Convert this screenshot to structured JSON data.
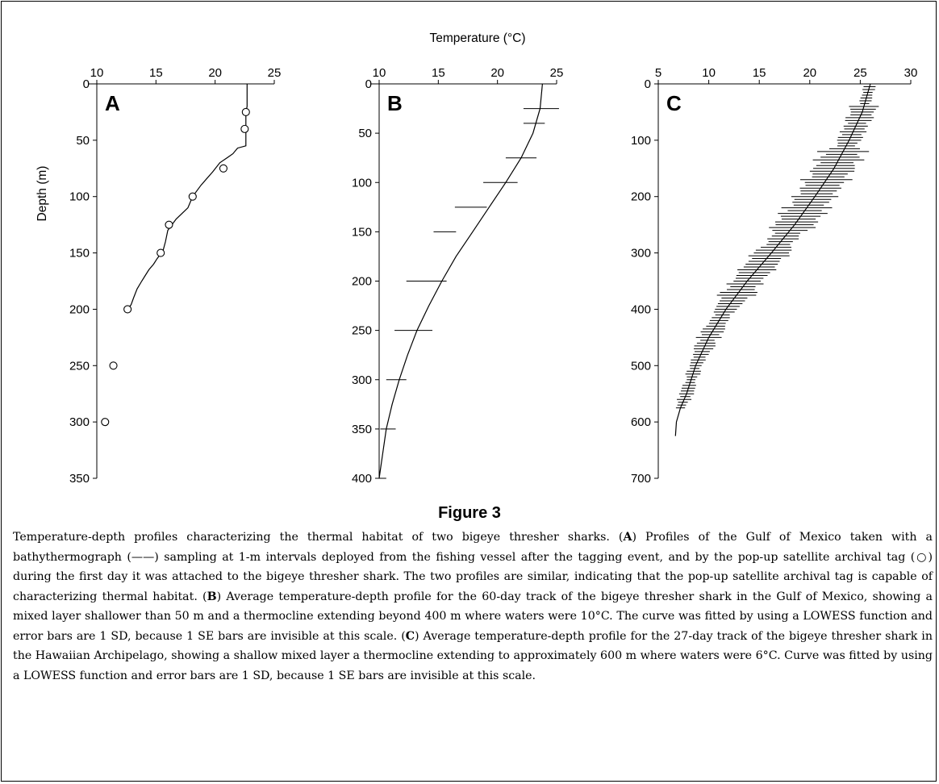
{
  "figure": {
    "xlabel": "Temperature (°C)",
    "ylabel": "Depth (m)",
    "title": "Figure 3",
    "caption": "Temperature-depth profiles characterizing the thermal habitat of two bigeye thresher sharks. (**A**) Profiles of the Gulf of Mexico taken with a bathythermograph (——) sampling at 1-m intervals deployed from the fishing vessel after the tagging event, and by the pop-up satellite archival tag (○) during the first day it was attached to the bigeye thresher shark. The two profiles are similar, indicating that the pop-up satellite archival tag is capable of characterizing thermal habitat. (**B**) Average temperature-depth profile for the 60-day track of the bigeye thresher shark in the Gulf of Mexico, showing a mixed layer shallower than 50 m and a thermocline extending beyond 400 m where waters were 10°C. The curve was fitted by using a LOWESS function and error bars are 1 SD, because 1 SE bars are invisible at this scale. (**C**) Average temperature-depth profile for the 27-day track of the bigeye thresher shark in the Hawaiian Archipelago, showing a shallow mixed layer a thermocline extending to approximately 600 m where waters were 6°C. Curve was fitted by using a LOWESS function and error bars are 1 SD, because 1 SE bars are invisible at this scale."
  },
  "chart_data": [
    {
      "type": "line",
      "panel": "A",
      "xlim": [
        10,
        25
      ],
      "xticks": [
        10,
        15,
        20,
        25
      ],
      "ylim": [
        0,
        350
      ],
      "yticks": [
        0,
        50,
        100,
        150,
        200,
        250,
        300,
        350
      ],
      "x_axis_position": "top",
      "y_reversed": true,
      "grid": false,
      "series": [
        {
          "kind": "line",
          "x": [
            22.7,
            22.7,
            22.6,
            22.6,
            22.6,
            22.6,
            21.9,
            21.5,
            21.1,
            20.4,
            19.8,
            18.8,
            18.1,
            17.7,
            16.7,
            16.0,
            15.8,
            15.6,
            15.1,
            14.8,
            14.4,
            14.1,
            13.8,
            13.4,
            13.1,
            12.9,
            12.6
          ],
          "y": [
            0,
            20,
            25,
            30,
            40,
            55,
            57,
            62,
            65,
            70,
            78,
            90,
            100,
            110,
            120,
            130,
            140,
            148,
            155,
            160,
            165,
            170,
            175,
            182,
            190,
            196,
            200
          ]
        },
        {
          "kind": "markers",
          "marker": "open-circle",
          "x": [
            22.6,
            22.5,
            20.7,
            18.1,
            16.1,
            15.4,
            12.6,
            11.4,
            10.7
          ],
          "y": [
            25,
            40,
            75,
            100,
            125,
            150,
            200,
            250,
            300
          ]
        }
      ]
    },
    {
      "type": "line",
      "panel": "B",
      "xlim": [
        10,
        25
      ],
      "xticks": [
        10,
        15,
        20,
        25
      ],
      "ylim": [
        0,
        400
      ],
      "yticks": [
        0,
        50,
        100,
        150,
        200,
        250,
        300,
        350,
        400
      ],
      "x_axis_position": "top",
      "y_reversed": true,
      "grid": false,
      "series": [
        {
          "kind": "line",
          "x": [
            23.8,
            23.6,
            23.0,
            22.0,
            20.7,
            19.3,
            17.9,
            16.5,
            15.3,
            14.2,
            13.2,
            12.4,
            11.7,
            11.1,
            10.6,
            10.3,
            10.0
          ],
          "y": [
            0,
            25,
            50,
            75,
            100,
            125,
            150,
            175,
            200,
            225,
            250,
            275,
            300,
            325,
            350,
            375,
            400
          ]
        },
        {
          "kind": "errorbars-x",
          "error": "1 SD",
          "y": [
            25,
            40,
            75,
            100,
            125,
            150,
            200,
            250,
            300,
            350,
            400
          ],
          "x_lo": [
            22.2,
            22.2,
            20.7,
            18.8,
            16.4,
            14.6,
            12.3,
            11.3,
            10.6,
            10.1,
            9.8
          ],
          "x_hi": [
            25.2,
            24.0,
            23.3,
            21.7,
            19.1,
            16.5,
            15.7,
            14.5,
            12.3,
            11.4,
            10.6
          ]
        }
      ]
    },
    {
      "type": "line",
      "panel": "C",
      "xlim": [
        5,
        30
      ],
      "xticks": [
        5,
        10,
        15,
        20,
        25,
        30
      ],
      "ylim": [
        0,
        700
      ],
      "yticks": [
        0,
        100,
        200,
        300,
        400,
        500,
        600,
        700
      ],
      "x_axis_position": "top",
      "y_reversed": true,
      "grid": false,
      "series": [
        {
          "kind": "line",
          "x": [
            26.0,
            25.2,
            23.9,
            22.4,
            20.5,
            18.5,
            16.2,
            13.8,
            11.7,
            10.0,
            8.7,
            7.8,
            7.2,
            6.8,
            6.7
          ],
          "y": [
            0,
            50,
            100,
            150,
            200,
            250,
            300,
            350,
            400,
            450,
            500,
            550,
            575,
            600,
            625
          ]
        },
        {
          "kind": "errorbars-x",
          "error": "1 SD",
          "note": "one bar about every 5 m, from 5 m to 575 m",
          "y_range": [
            5,
            575
          ],
          "y_step": 5
        }
      ]
    }
  ]
}
